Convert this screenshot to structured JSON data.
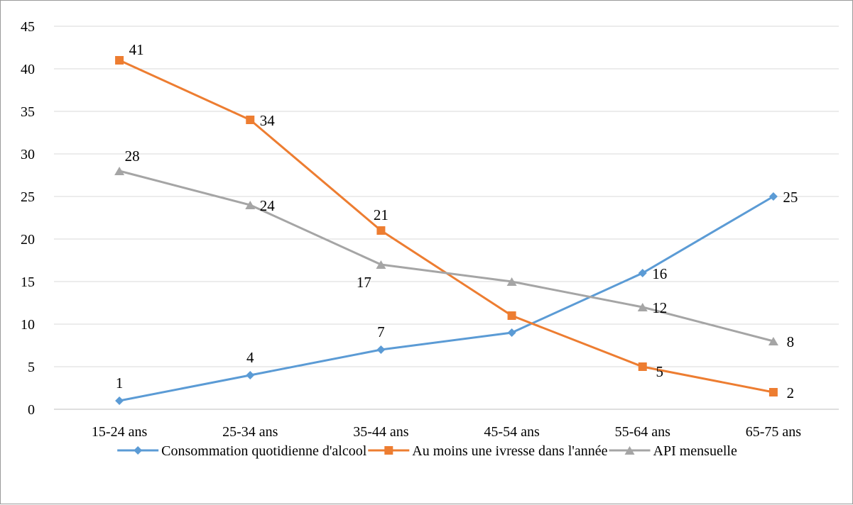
{
  "chart_data": {
    "type": "line",
    "title": "",
    "xlabel": "",
    "ylabel": "",
    "categories": [
      "15-24 ans",
      "25-34 ans",
      "35-44 ans",
      "45-54 ans",
      "55-64 ans",
      "65-75 ans"
    ],
    "ylim": [
      0,
      45
    ],
    "yticks": [
      "0",
      "5",
      "10",
      "15",
      "20",
      "25",
      "30",
      "35",
      "40",
      "45"
    ],
    "grid": true,
    "legend_position": "bottom",
    "series": [
      {
        "name": "Consommation quotidienne d'alcool",
        "values": [
          1,
          4,
          7,
          9,
          16,
          25
        ],
        "data_labels": [
          "1",
          "4",
          "7",
          "",
          "16",
          "25"
        ],
        "color": "#5b9bd5",
        "marker": "diamond"
      },
      {
        "name": "Au moins une ivresse dans l'année",
        "values": [
          41,
          34,
          21,
          11,
          5,
          2
        ],
        "data_labels": [
          "41",
          "34",
          "21",
          "",
          "5",
          "2"
        ],
        "color": "#ed7d31",
        "marker": "square"
      },
      {
        "name": "API mensuelle",
        "values": [
          28,
          24,
          17,
          15,
          12,
          8
        ],
        "data_labels": [
          "28",
          "24",
          "17",
          "",
          "12",
          "8"
        ],
        "color": "#a5a5a5",
        "marker": "triangle"
      }
    ]
  }
}
